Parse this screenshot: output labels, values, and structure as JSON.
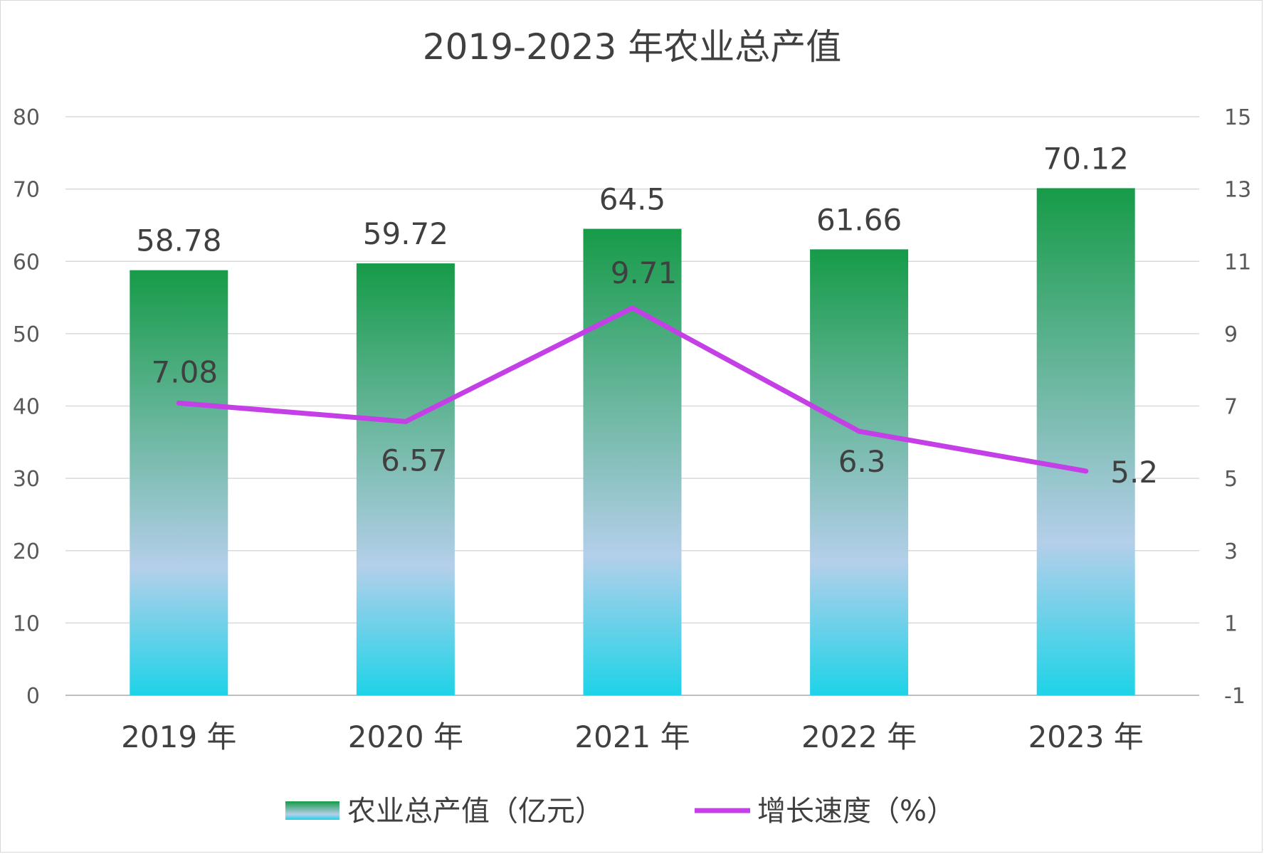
{
  "chart_data": {
    "type": "bar",
    "title": "2019-2023 年农业总产值",
    "categories": [
      "2019 年",
      "2020 年",
      "2021 年",
      "2022 年",
      "2023 年"
    ],
    "series": [
      {
        "name": "农业总产值（亿元）",
        "type": "bar",
        "axis": "left",
        "values": [
          58.78,
          59.72,
          64.5,
          61.66,
          70.12
        ],
        "color_top": "#169b48",
        "color_mid": "#b4cfea",
        "color_bottom": "#1ed3e8"
      },
      {
        "name": "增长速度（%）",
        "type": "line",
        "axis": "right",
        "values": [
          7.08,
          6.57,
          9.71,
          6.3,
          5.2
        ],
        "color": "#c43fe6"
      }
    ],
    "y_left": {
      "min": 0,
      "max": 80,
      "step": 10
    },
    "y_right": {
      "min": -1,
      "max": 15,
      "step": 2
    },
    "grid": true,
    "legend": "bottom"
  }
}
